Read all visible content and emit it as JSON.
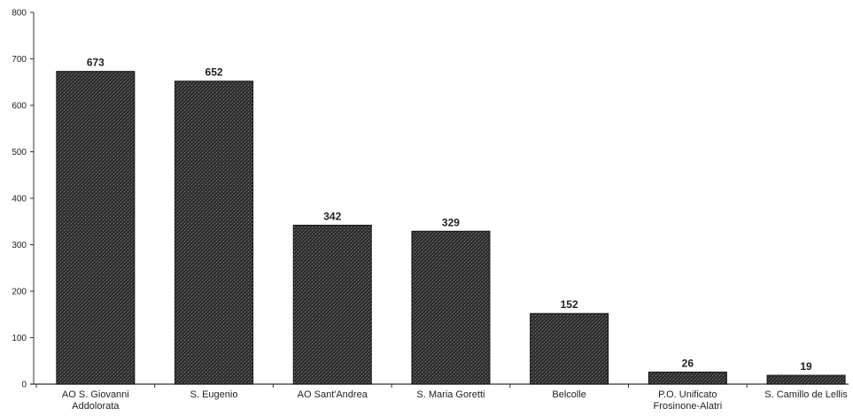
{
  "chart_data": {
    "type": "bar",
    "categories": [
      [
        "AO S. Giovanni",
        "Addolorata"
      ],
      [
        "S. Eugenio"
      ],
      [
        "AO Sant'Andrea"
      ],
      [
        "S. Maria Goretti"
      ],
      [
        "Belcolle"
      ],
      [
        "P.O. Unificato",
        "Frosinone-Alatri"
      ],
      [
        "S. Camillo de Lellis"
      ]
    ],
    "values": [
      673,
      652,
      342,
      329,
      152,
      26,
      19
    ],
    "data_labels": [
      "673",
      "652",
      "342",
      "329",
      "152",
      "26",
      "19"
    ],
    "yticks": [
      0,
      100,
      200,
      300,
      400,
      500,
      600,
      700,
      800
    ],
    "ylim": [
      0,
      800
    ],
    "grid": false,
    "legend": false,
    "colors": {
      "bar_fill": "#2b2b2b",
      "bar_edge": "#111111",
      "axis": "#333333",
      "text": "#222222"
    }
  }
}
